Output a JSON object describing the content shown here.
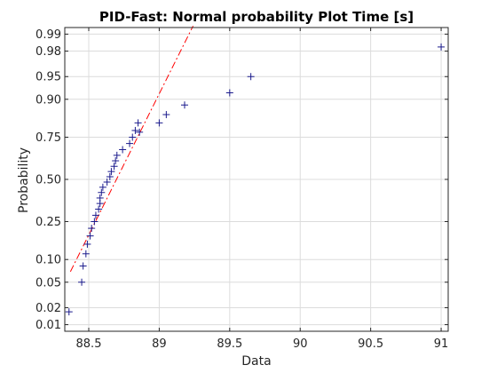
{
  "chart_data": {
    "type": "scatter",
    "title": "PID-Fast: Normal probability Plot Time [s]",
    "xlabel": "Data",
    "ylabel": "Probability",
    "xlim": [
      88.33,
      91.05
    ],
    "ylim": [
      0.0075,
      0.9925
    ],
    "y_scale": "normal-probability",
    "grid": true,
    "x_ticks": [
      88.5,
      89,
      89.5,
      90,
      90.5,
      91
    ],
    "x_tick_labels": [
      "88.5",
      "89",
      "89.5",
      "90",
      "90.5",
      "91"
    ],
    "y_ticks": [
      0.01,
      0.02,
      0.05,
      0.1,
      0.25,
      0.5,
      0.75,
      0.9,
      0.95,
      0.98,
      0.99
    ],
    "y_tick_labels": [
      "0.01",
      "0.02",
      "0.05",
      "0.10",
      "0.25",
      "0.50",
      "0.75",
      "0.90",
      "0.95",
      "0.98",
      "0.99"
    ],
    "colors": {
      "points": "#1a1a8c",
      "reference_line": "#ff0000",
      "grid": "#dcdcdc",
      "axes": "#262626"
    },
    "series": [
      {
        "marker": "plus",
        "x": [
          88.36,
          88.45,
          88.46,
          88.48,
          88.49,
          88.51,
          88.52,
          88.54,
          88.55,
          88.57,
          88.58,
          88.58,
          88.59,
          88.6,
          88.63,
          88.65,
          88.66,
          88.68,
          88.69,
          88.7,
          88.74,
          88.79,
          88.81,
          88.83,
          88.85,
          88.86,
          89.0,
          89.05,
          89.18,
          89.5,
          89.65,
          91.0
        ],
        "y": [
          0.017,
          0.05,
          0.083,
          0.117,
          0.15,
          0.183,
          0.217,
          0.25,
          0.283,
          0.317,
          0.35,
          0.383,
          0.417,
          0.45,
          0.483,
          0.517,
          0.55,
          0.583,
          0.617,
          0.65,
          0.683,
          0.717,
          0.75,
          0.783,
          0.817,
          0.775,
          0.817,
          0.85,
          0.883,
          0.917,
          0.95,
          0.983
        ]
      }
    ],
    "reference_line": {
      "style": "dash-dot",
      "x": [
        88.37,
        89.24
      ],
      "y": [
        0.07,
        0.993
      ]
    }
  }
}
